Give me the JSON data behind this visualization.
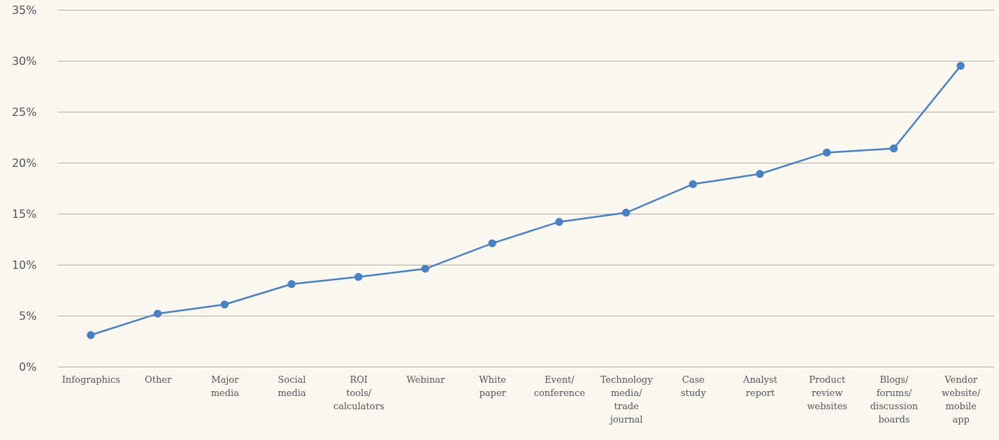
{
  "chart_data": {
    "type": "line",
    "categories": [
      "Infographics",
      "Other",
      "Major media",
      "Social media",
      "ROI tools/ calculators",
      "Webinar",
      "White paper",
      "Event/ conference",
      "Technology media/ trade journal",
      "Case study",
      "Analyst report",
      "Product review websites",
      "Blogs/ forums/ discussion boards",
      "Vendor website/ mobile app"
    ],
    "series": [
      {
        "color": "#4a7fc1",
        "values": [
          3.1,
          5.2,
          6.1,
          8.1,
          8.8,
          9.6,
          12.1,
          14.2,
          15.1,
          17.9,
          18.9,
          21.0,
          21.4,
          29.5
        ]
      }
    ],
    "ylim": [
      0,
      35
    ],
    "yticks": [
      {
        "value": 0,
        "label": "0%"
      },
      {
        "value": 5,
        "label": "5%"
      },
      {
        "value": 10,
        "label": "10%"
      },
      {
        "value": 15,
        "label": "15%"
      },
      {
        "value": 20,
        "label": "20%"
      },
      {
        "value": 25,
        "label": "25%"
      },
      {
        "value": 30,
        "label": "30%"
      },
      {
        "value": 35,
        "label": "35%"
      }
    ],
    "grid": "y",
    "marker": "circle",
    "line_style": "solid"
  }
}
